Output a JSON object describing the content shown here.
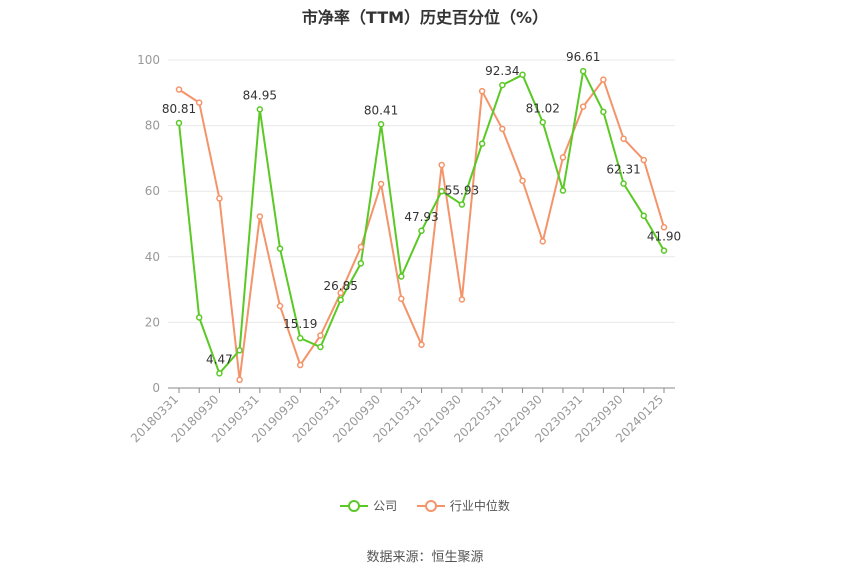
{
  "colors": {
    "company": "#5ac925",
    "industry": "#f4946a",
    "grid": "#e8e8e8",
    "axis": "#888888",
    "tick_label": "#999999"
  },
  "chart_data": {
    "type": "line",
    "title": "市净率（TTM）历史百分位（%）",
    "ylim": [
      0,
      100
    ],
    "yticks": [
      0,
      20,
      40,
      60,
      80,
      100
    ],
    "grid": true,
    "legend_placement": "bottom-center",
    "x_tick_labels": [
      "20180331",
      "20180930",
      "20190331",
      "20190930",
      "20200331",
      "20200930",
      "20210331",
      "20210930",
      "20220331",
      "20220930",
      "20230331",
      "20230930",
      "20240125"
    ],
    "x": [
      "20180331",
      "20180630",
      "20180930",
      "20181231",
      "20190331",
      "20190630",
      "20190930",
      "20191231",
      "20200331",
      "20200630",
      "20200930",
      "20201231",
      "20210331",
      "20210630",
      "20210930",
      "20211231",
      "20220331",
      "20220630",
      "20220930",
      "20221231",
      "20230331",
      "20230630",
      "20230930",
      "20231231",
      "20240125"
    ],
    "series": [
      {
        "name": "公司",
        "color_key": "company",
        "values": [
          80.81,
          21.5,
          4.47,
          11.5,
          84.95,
          42.5,
          15.19,
          12.5,
          26.85,
          38.0,
          80.41,
          34.0,
          47.93,
          60.0,
          55.93,
          74.5,
          92.34,
          95.5,
          81.02,
          60.2,
          96.61,
          84.2,
          62.31,
          52.5,
          41.9
        ],
        "labels": {
          "0": "80.81",
          "2": "4.47",
          "4": "84.95",
          "6": "15.19",
          "8": "26.85",
          "10": "80.41",
          "12": "47.93",
          "14": "55.93",
          "16": "92.34",
          "18": "81.02",
          "20": "96.61",
          "22": "62.31",
          "24": "41.90"
        }
      },
      {
        "name": "行业中位数",
        "color_key": "industry",
        "values": [
          91.0,
          87.0,
          57.8,
          2.5,
          52.3,
          25.0,
          7.0,
          16.0,
          29.0,
          43.0,
          62.2,
          27.2,
          13.2,
          68.0,
          27.0,
          90.5,
          79.0,
          63.2,
          44.7,
          70.3,
          85.8,
          94.0,
          76.0,
          69.5,
          49.0
        ]
      }
    ]
  },
  "legend": {
    "company_label": "公司",
    "industry_label": "行业中位数"
  },
  "source": "数据来源：恒生聚源"
}
